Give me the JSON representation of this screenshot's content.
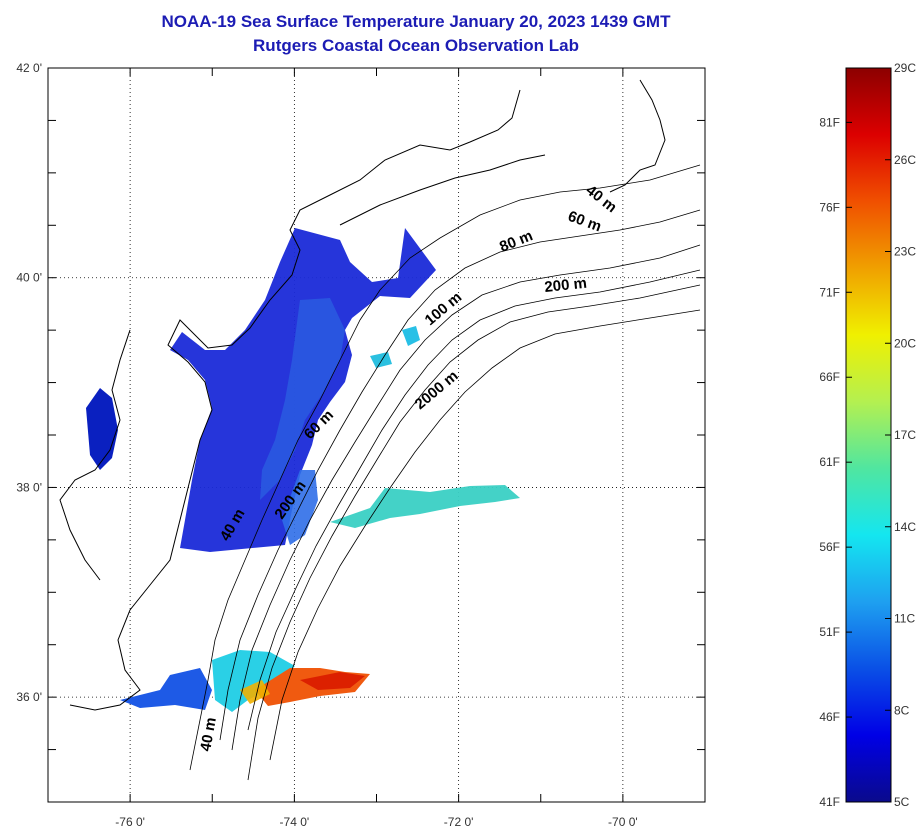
{
  "title": "NOAA-19 Sea Surface Temperature January 20, 2023 1439 GMT",
  "subtitle": "Rutgers Coastal Ocean Observation Lab",
  "map": {
    "lon_range": [
      -77,
      -69
    ],
    "lat_range": [
      35,
      42
    ],
    "lon_ticks": [
      {
        "value": -76,
        "label": "-76 0'"
      },
      {
        "value": -74,
        "label": "-74 0'"
      },
      {
        "value": -72,
        "label": "-72 0'"
      },
      {
        "value": -70,
        "label": "-70 0'"
      }
    ],
    "lat_ticks": [
      {
        "value": 42,
        "label": "42 0'"
      },
      {
        "value": 40,
        "label": "40 0'"
      },
      {
        "value": 38,
        "label": "38 0'"
      },
      {
        "value": 36,
        "label": "36 0'"
      }
    ],
    "contour_labels": [
      "40 m",
      "60 m",
      "80 m",
      "200 m",
      "100 m",
      "2000 m",
      "60 m",
      "40 m",
      "200 m",
      "40 m"
    ]
  },
  "colorbar": {
    "min_c": 5,
    "max_c": 29,
    "celsius_labels": [
      "29C",
      "26C",
      "23C",
      "20C",
      "17C",
      "14C",
      "11C",
      "8C",
      "5C"
    ],
    "fahrenheit_labels": [
      "81F",
      "76F",
      "71F",
      "66F",
      "61F",
      "56F",
      "51F",
      "46F",
      "41F"
    ],
    "colors": [
      "#0a0a8c",
      "#0000e6",
      "#0a50e6",
      "#1ea0f0",
      "#14e6f0",
      "#50e6a0",
      "#b4f050",
      "#f0f000",
      "#f0a000",
      "#f05000",
      "#dc0000",
      "#8c0000"
    ]
  }
}
